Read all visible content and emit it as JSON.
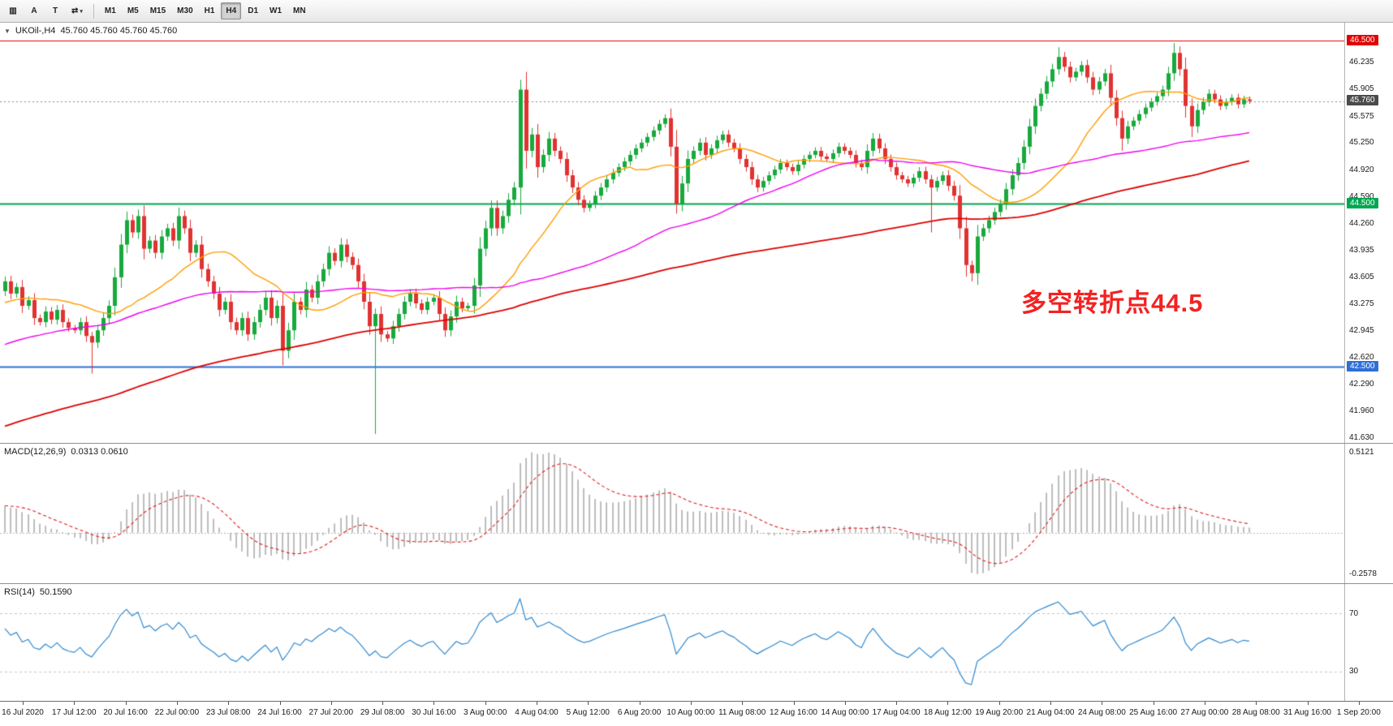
{
  "toolbar": {
    "tool_buttons": [
      {
        "name": "chart-bars",
        "glyph": "▥"
      },
      {
        "name": "cursor-a-tool",
        "glyph": "A"
      },
      {
        "name": "text-tool",
        "glyph": "T"
      },
      {
        "name": "cycle-tool",
        "glyph": "⇄",
        "has_dropdown": true
      }
    ],
    "timeframes": [
      "M1",
      "M5",
      "M15",
      "M30",
      "H1",
      "H4",
      "D1",
      "W1",
      "MN"
    ],
    "active_timeframe": "H4"
  },
  "chart": {
    "symbol_label": "UKOil-,H4",
    "ohlc_text": "45.760 45.760 45.760 45.760",
    "annotation": {
      "text": "多空转折点44.5",
      "color": "#f32222"
    },
    "price_axis": {
      "max": 46.72,
      "min": 41.57,
      "ticks": [
        "46.235",
        "45.905",
        "45.575",
        "45.250",
        "44.920",
        "44.590",
        "44.260",
        "43.935",
        "43.605",
        "43.275",
        "42.945",
        "42.620",
        "42.290",
        "41.960",
        "41.630"
      ],
      "badges": [
        {
          "label": "46.500",
          "bg": "#e20000"
        },
        {
          "label": "45.760",
          "bg": "#4b4b4b"
        },
        {
          "label": "44.500",
          "bg": "#00a651"
        },
        {
          "label": "42.500",
          "bg": "#2f6fd6"
        }
      ]
    },
    "hlines": [
      {
        "price": 46.5,
        "color": "#e20000",
        "width": 1,
        "style": "solid"
      },
      {
        "price": 44.5,
        "color": "#00a651",
        "width": 2,
        "style": "solid"
      },
      {
        "price": 42.5,
        "color": "#2f6fd6",
        "width": 2,
        "style": "solid"
      },
      {
        "price": 45.76,
        "color": "#8a8a8a",
        "width": 1,
        "style": "dotted"
      }
    ],
    "colors": {
      "up": "#18a93c",
      "down": "#e03232",
      "ma_fast": "#ff9d00",
      "ma_mid": "#ee00ee",
      "ma_slow": "#dc0000"
    }
  },
  "chart_data": {
    "type": "candlestick+indicators",
    "symbol": "UKOil-",
    "timeframe": "H4",
    "closes": [
      43.55,
      43.4,
      43.48,
      43.25,
      43.32,
      43.1,
      43.05,
      43.18,
      43.08,
      43.2,
      43.05,
      42.98,
      42.95,
      43.05,
      42.88,
      42.8,
      42.95,
      43.1,
      43.25,
      43.6,
      44.0,
      44.3,
      44.15,
      44.35,
      43.95,
      44.05,
      43.9,
      44.1,
      44.2,
      44.05,
      44.35,
      44.2,
      43.9,
      44.0,
      43.7,
      43.55,
      43.4,
      43.2,
      43.3,
      43.05,
      42.95,
      43.1,
      42.9,
      43.05,
      43.2,
      43.35,
      43.1,
      43.25,
      42.7,
      42.95,
      43.3,
      43.2,
      43.45,
      43.35,
      43.55,
      43.7,
      43.9,
      43.8,
      44.0,
      43.85,
      43.75,
      43.55,
      43.3,
      43.0,
      43.15,
      42.9,
      42.85,
      43.0,
      43.15,
      43.3,
      43.4,
      43.28,
      43.2,
      43.3,
      43.35,
      43.15,
      42.95,
      43.12,
      43.3,
      43.22,
      43.25,
      43.5,
      43.95,
      44.2,
      44.45,
      44.2,
      44.35,
      44.55,
      44.7,
      45.9,
      45.15,
      45.35,
      44.95,
      45.1,
      45.3,
      45.15,
      45.05,
      44.85,
      44.7,
      44.55,
      44.45,
      44.5,
      44.6,
      44.7,
      44.8,
      44.88,
      44.95,
      45.02,
      45.1,
      45.18,
      45.25,
      45.32,
      45.4,
      45.48,
      45.55,
      45.2,
      44.5,
      44.75,
      45.05,
      45.15,
      45.25,
      45.1,
      45.18,
      45.28,
      45.35,
      45.25,
      45.18,
      45.05,
      44.95,
      44.8,
      44.7,
      44.78,
      44.85,
      44.92,
      45.0,
      44.95,
      44.9,
      44.98,
      45.05,
      45.1,
      45.15,
      45.08,
      45.05,
      45.12,
      45.2,
      45.15,
      45.1,
      45.0,
      44.95,
      45.15,
      45.3,
      45.18,
      45.05,
      44.95,
      44.85,
      44.8,
      44.75,
      44.82,
      44.9,
      44.8,
      44.7,
      44.78,
      44.85,
      44.72,
      44.6,
      44.2,
      43.75,
      43.65,
      44.1,
      44.2,
      44.3,
      44.4,
      44.5,
      44.68,
      44.85,
      45.0,
      45.2,
      45.45,
      45.7,
      45.85,
      46.0,
      46.15,
      46.3,
      46.18,
      46.05,
      46.12,
      46.2,
      46.05,
      45.9,
      46.0,
      46.1,
      45.8,
      45.55,
      45.3,
      45.45,
      45.52,
      45.6,
      45.68,
      45.75,
      45.82,
      45.9,
      46.1,
      46.35,
      46.15,
      45.7,
      45.45,
      45.65,
      45.75,
      45.85,
      45.78,
      45.7,
      45.75,
      45.8,
      45.72,
      45.78,
      45.76
    ],
    "wick_overrides": [
      {
        "i": 15,
        "low": 42.42
      },
      {
        "i": 48,
        "low": 42.52
      },
      {
        "i": 64,
        "low": 41.68
      },
      {
        "i": 89,
        "high": 46.02
      },
      {
        "i": 116,
        "low": 44.38
      },
      {
        "i": 160,
        "low": 44.15
      },
      {
        "i": 167,
        "low": 43.55
      },
      {
        "i": 182,
        "high": 46.42
      },
      {
        "i": 193,
        "low": 45.15
      },
      {
        "i": 202,
        "high": 46.47
      },
      {
        "i": 205,
        "low": 45.32
      }
    ],
    "history_seed": {
      "start": 40.0,
      "end": 43.5,
      "count": 144,
      "wiggle": 0.07
    },
    "ma_periods": {
      "fast": 20,
      "mid": 62,
      "slow": 144
    },
    "time_labels": [
      "16 Jul 2020",
      "17 Jul 12:00",
      "20 Jul 16:00",
      "22 Jul 00:00",
      "23 Jul 08:00",
      "24 Jul 16:00",
      "27 Jul 20:00",
      "29 Jul 08:00",
      "30 Jul 16:00",
      "3 Aug 00:00",
      "4 Aug 04:00",
      "5 Aug 12:00",
      "6 Aug 20:00",
      "10 Aug 00:00",
      "11 Aug 08:00",
      "12 Aug 16:00",
      "14 Aug 00:00",
      "17 Aug 04:00",
      "18 Aug 12:00",
      "19 Aug 20:00",
      "21 Aug 04:00",
      "24 Aug 08:00",
      "25 Aug 16:00",
      "27 Aug 00:00",
      "28 Aug 08:00",
      "31 Aug 16:00",
      "1 Sep 20:00"
    ],
    "macd": {
      "label": "MACD(12,26,9)",
      "values_text": "0.0313 0.0610",
      "fast": 12,
      "slow": 26,
      "signal": 9,
      "scale_max": "0.5121",
      "scale_min": "-0.2578",
      "bar_color": "#a8a8a8",
      "signal_color": "#e01b1b"
    },
    "rsi": {
      "label": "RSI(14)",
      "value_text": "50.1590",
      "period": 14,
      "levels": [
        "70",
        "30"
      ],
      "ymin": 12,
      "ymax": 88,
      "line_color": "#2f89d0"
    }
  }
}
